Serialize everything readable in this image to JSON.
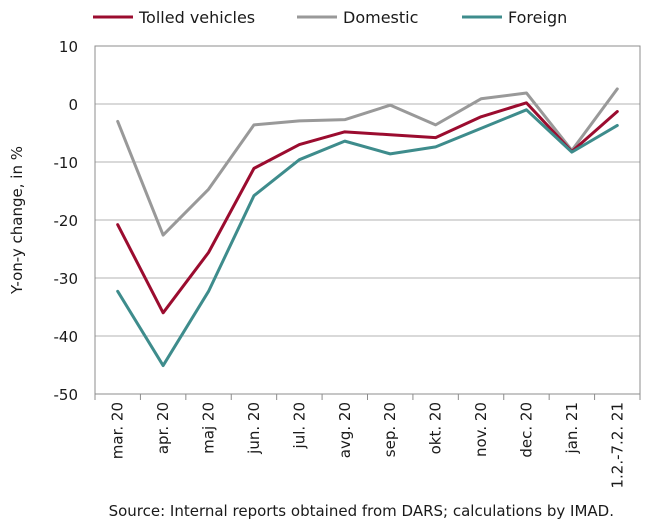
{
  "chart_data": {
    "type": "line",
    "categories": [
      "mar. 20",
      "apr. 20",
      "maj 20",
      "jun. 20",
      "jul. 20",
      "avg. 20",
      "sep. 20",
      "okt. 20",
      "nov. 20",
      "dec. 20",
      "jan. 21",
      "1.2.-7.2. 21"
    ],
    "series": [
      {
        "name": "Tolled vehicles",
        "color": "#9b0c2f",
        "values": [
          -20.8,
          -36.0,
          -25.6,
          -11.1,
          -7.0,
          -4.8,
          -5.3,
          -5.8,
          -2.2,
          0.2,
          -8.2,
          -1.3
        ]
      },
      {
        "name": "Domestic",
        "color": "#999999",
        "values": [
          -3.0,
          -22.6,
          -14.7,
          -3.6,
          -2.9,
          -2.7,
          -0.2,
          -3.6,
          0.9,
          1.9,
          -8.0,
          2.6
        ]
      },
      {
        "name": "Foreign",
        "color": "#3e8c8c",
        "values": [
          -32.3,
          -45.1,
          -32.3,
          -15.8,
          -9.6,
          -6.4,
          -8.6,
          -7.4,
          -4.2,
          -1.0,
          -8.3,
          -3.7
        ]
      }
    ],
    "ylabel": "Y-on-y change, in %",
    "xlabel": "",
    "ylim": [
      -50,
      10
    ],
    "yticks": [
      10,
      0,
      -10,
      -20,
      -30,
      -40,
      -50
    ],
    "grid": true,
    "legend": "top"
  },
  "source": "Source: Internal reports obtained from DARS; calculations by IMAD."
}
